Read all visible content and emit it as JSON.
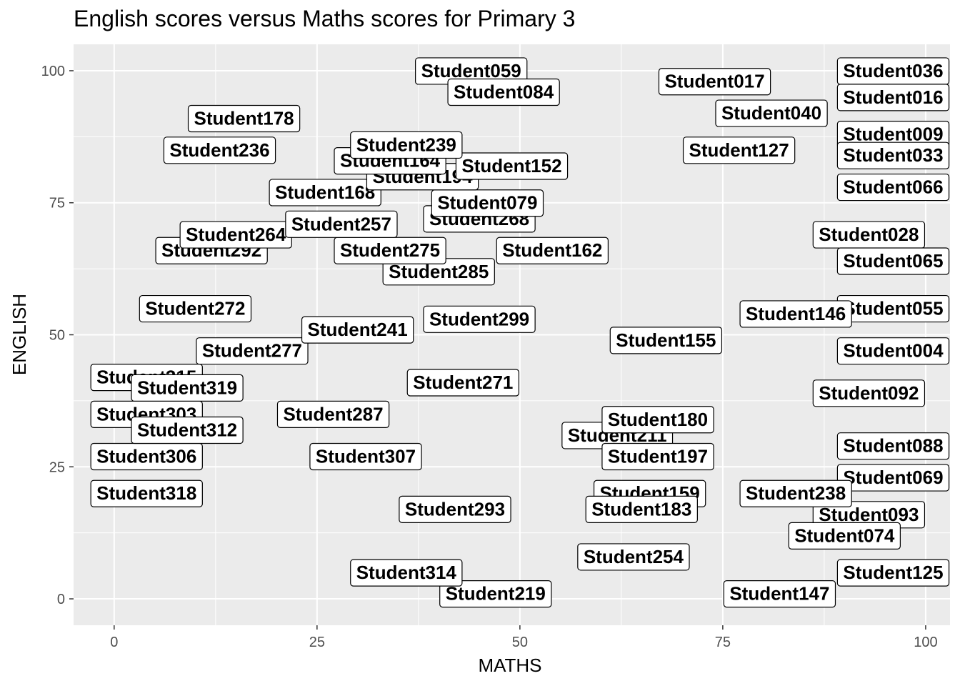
{
  "chart_data": {
    "type": "scatter",
    "title": "English scores versus Maths scores for Primary 3",
    "xlabel": "MATHS",
    "ylabel": "ENGLISH",
    "xlim": [
      -5,
      103
    ],
    "ylim": [
      -5,
      105
    ],
    "x_ticks": [
      0,
      25,
      50,
      75,
      100
    ],
    "y_ticks": [
      0,
      25,
      50,
      75,
      100
    ],
    "grid": true,
    "panel_background": "#ebebeb",
    "grid_color": "#ffffff",
    "label_style": "boxed-text",
    "points": [
      {
        "label": "Student059",
        "x": 44,
        "y": 100
      },
      {
        "label": "Student036",
        "x": 96,
        "y": 100
      },
      {
        "label": "Student016",
        "x": 96,
        "y": 95
      },
      {
        "label": "Student040",
        "x": 81,
        "y": 92
      },
      {
        "label": "Student017",
        "x": 74,
        "y": 98
      },
      {
        "label": "Student009",
        "x": 96,
        "y": 88
      },
      {
        "label": "Student033",
        "x": 96,
        "y": 84
      },
      {
        "label": "Student127",
        "x": 77,
        "y": 85
      },
      {
        "label": "Student066",
        "x": 96,
        "y": 78
      },
      {
        "label": "Student028",
        "x": 93,
        "y": 69
      },
      {
        "label": "Student065",
        "x": 96,
        "y": 64
      },
      {
        "label": "Student055",
        "x": 96,
        "y": 55
      },
      {
        "label": "Student004",
        "x": 96,
        "y": 47
      },
      {
        "label": "Student092",
        "x": 93,
        "y": 39
      },
      {
        "label": "Student088",
        "x": 96,
        "y": 29
      },
      {
        "label": "Student069",
        "x": 96,
        "y": 23
      },
      {
        "label": "Student093",
        "x": 93,
        "y": 16
      },
      {
        "label": "Student074",
        "x": 90,
        "y": 12
      },
      {
        "label": "Student125",
        "x": 96,
        "y": 5
      },
      {
        "label": "Student147",
        "x": 82,
        "y": 1
      },
      {
        "label": "Student219",
        "x": 47,
        "y": 1
      },
      {
        "label": "Student314",
        "x": 36,
        "y": 5
      },
      {
        "label": "Student254",
        "x": 64,
        "y": 8
      },
      {
        "label": "Student293",
        "x": 42,
        "y": 17
      },
      {
        "label": "Student307",
        "x": 31,
        "y": 27
      },
      {
        "label": "Student306",
        "x": 4,
        "y": 27
      },
      {
        "label": "Student318",
        "x": 4,
        "y": 20
      },
      {
        "label": "Student303",
        "x": 4,
        "y": 35
      },
      {
        "label": "Student315",
        "x": 4,
        "y": 42
      },
      {
        "label": "Student319",
        "x": 9,
        "y": 40
      },
      {
        "label": "Student312",
        "x": 9,
        "y": 32
      },
      {
        "label": "Student287",
        "x": 27,
        "y": 35
      },
      {
        "label": "Student271",
        "x": 43,
        "y": 41
      },
      {
        "label": "Student277",
        "x": 17,
        "y": 47
      },
      {
        "label": "Student241",
        "x": 30,
        "y": 51
      },
      {
        "label": "Student272",
        "x": 10,
        "y": 55
      },
      {
        "label": "Student299",
        "x": 45,
        "y": 53
      },
      {
        "label": "Student285",
        "x": 40,
        "y": 62
      },
      {
        "label": "Student292",
        "x": 12,
        "y": 66
      },
      {
        "label": "Student264",
        "x": 15,
        "y": 69
      },
      {
        "label": "Student275",
        "x": 34,
        "y": 66
      },
      {
        "label": "Student162",
        "x": 54,
        "y": 66
      },
      {
        "label": "Student257",
        "x": 28,
        "y": 71
      },
      {
        "label": "Student268",
        "x": 45,
        "y": 72
      },
      {
        "label": "Student079",
        "x": 46,
        "y": 75
      },
      {
        "label": "Student168",
        "x": 26,
        "y": 77
      },
      {
        "label": "Student194",
        "x": 38,
        "y": 80
      },
      {
        "label": "Student152",
        "x": 49,
        "y": 82
      },
      {
        "label": "Student164",
        "x": 34,
        "y": 83
      },
      {
        "label": "Student239",
        "x": 36,
        "y": 86
      },
      {
        "label": "Student236",
        "x": 13,
        "y": 85
      },
      {
        "label": "Student178",
        "x": 16,
        "y": 91
      },
      {
        "label": "Student084",
        "x": 48,
        "y": 96
      },
      {
        "label": "Student146",
        "x": 84,
        "y": 54
      },
      {
        "label": "Student155",
        "x": 68,
        "y": 49
      },
      {
        "label": "Student211",
        "x": 62,
        "y": 31
      },
      {
        "label": "Student197",
        "x": 67,
        "y": 27
      },
      {
        "label": "Student180",
        "x": 67,
        "y": 34
      },
      {
        "label": "Student159",
        "x": 66,
        "y": 20
      },
      {
        "label": "Student183",
        "x": 65,
        "y": 17
      },
      {
        "label": "Student238",
        "x": 84,
        "y": 20
      }
    ]
  }
}
